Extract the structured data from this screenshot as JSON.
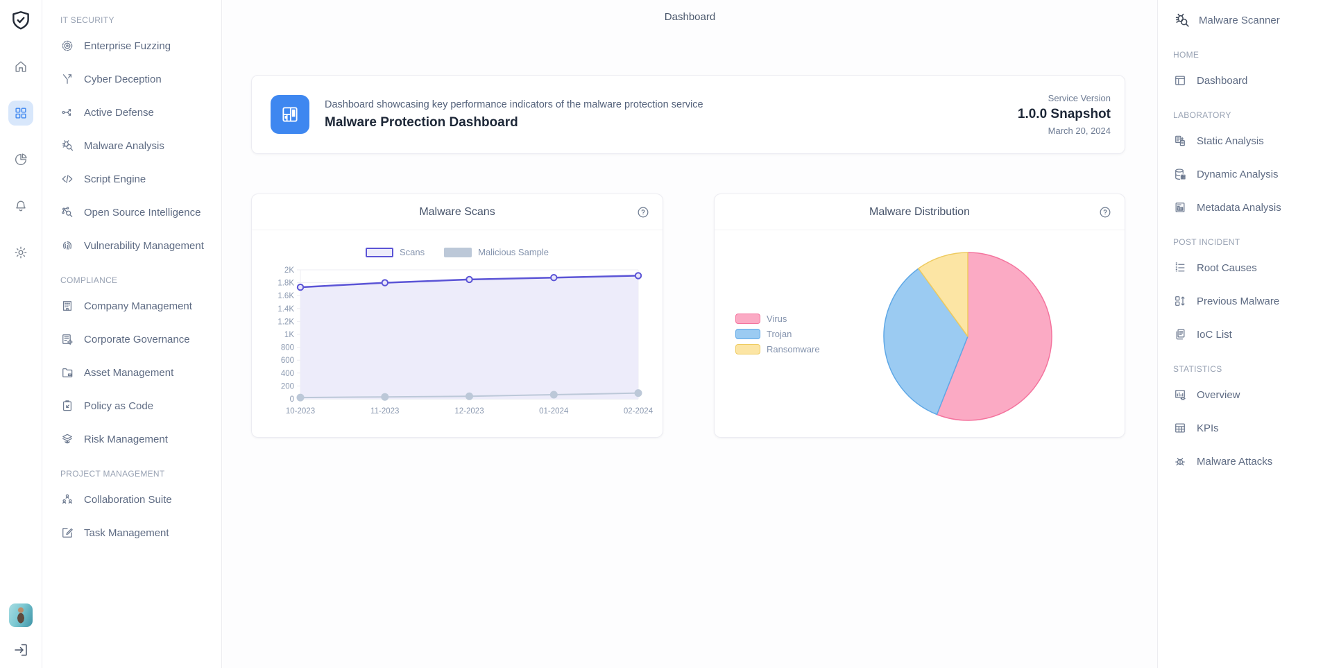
{
  "app": {
    "top_title": "Dashboard"
  },
  "rail": {
    "logo_icon": "shield-check",
    "items": [
      {
        "icon": "home",
        "active": false
      },
      {
        "icon": "apps",
        "active": true
      },
      {
        "icon": "pie",
        "active": false
      },
      {
        "icon": "bell",
        "active": false
      },
      {
        "icon": "gear",
        "active": false
      }
    ],
    "avatar": "user-photo",
    "logout_icon": "logout"
  },
  "left_sidebar": {
    "sections": [
      {
        "label": "IT SECURITY",
        "items": [
          {
            "label": "Enterprise Fuzzing",
            "icon": "target"
          },
          {
            "label": "Cyber Deception",
            "icon": "split"
          },
          {
            "label": "Active Defense",
            "icon": "route"
          },
          {
            "label": "Malware Analysis",
            "icon": "bug-search"
          },
          {
            "label": "Script Engine",
            "icon": "code"
          },
          {
            "label": "Open Source Intelligence",
            "icon": "net-search"
          },
          {
            "label": "Vulnerability Management",
            "icon": "fingerprint"
          }
        ]
      },
      {
        "label": "COMPLIANCE",
        "items": [
          {
            "label": "Company Management",
            "icon": "building"
          },
          {
            "label": "Corporate Governance",
            "icon": "list-gear"
          },
          {
            "label": "Asset Management",
            "icon": "folder"
          },
          {
            "label": "Policy as Code",
            "icon": "clipboard"
          },
          {
            "label": "Risk Management",
            "icon": "layers-eye"
          }
        ]
      },
      {
        "label": "PROJECT MANAGEMENT",
        "items": [
          {
            "label": "Collaboration Suite",
            "icon": "org"
          },
          {
            "label": "Task Management",
            "icon": "edit-square"
          }
        ]
      }
    ]
  },
  "right_sidebar": {
    "title": "Malware Scanner",
    "title_icon": "bug-search",
    "sections": [
      {
        "label": "HOME",
        "items": [
          {
            "label": "Dashboard",
            "icon": "layout"
          }
        ]
      },
      {
        "label": "LABORATORY",
        "items": [
          {
            "label": "Static Analysis",
            "icon": "doc-copy"
          },
          {
            "label": "Dynamic Analysis",
            "icon": "database"
          },
          {
            "label": "Metadata Analysis",
            "icon": "doc-table"
          }
        ]
      },
      {
        "label": "POST INCIDENT",
        "items": [
          {
            "label": "Root Causes",
            "icon": "list"
          },
          {
            "label": "Previous Malware",
            "icon": "grid-arrows"
          },
          {
            "label": "IoC List",
            "icon": "docs"
          }
        ]
      },
      {
        "label": "STATISTICS",
        "items": [
          {
            "label": "Overview",
            "icon": "chart-doc"
          },
          {
            "label": "KPIs",
            "icon": "table"
          },
          {
            "label": "Malware Attacks",
            "icon": "bug"
          }
        ]
      }
    ]
  },
  "header_card": {
    "icon": "layout-blue",
    "subtitle": "Dashboard showcasing key performance indicators of the malware protection service",
    "title": "Malware Protection Dashboard",
    "version_label": "Service Version",
    "version_value": "1.0.0 Snapshot",
    "version_date": "March 20, 2024"
  },
  "chart_data": [
    {
      "type": "line",
      "title": "Malware Scans",
      "x": [
        "10-2023",
        "11-2023",
        "12-2023",
        "01-2024",
        "02-2024"
      ],
      "series": [
        {
          "name": "Scans",
          "values": [
            1730,
            1800,
            1850,
            1880,
            1910
          ],
          "color": "#5b54d6",
          "fill": "#edecfa",
          "style": "line-area-markers"
        },
        {
          "name": "Malicious Sample",
          "values": [
            20,
            30,
            40,
            65,
            90
          ],
          "color": "#bcc8d8",
          "style": "line-dots"
        }
      ],
      "ylim": [
        0,
        2000
      ],
      "yticks": [
        0,
        200,
        400,
        600,
        800,
        1000,
        1200,
        1400,
        1600,
        1800,
        2000
      ],
      "ytick_labels": [
        "0",
        "200",
        "400",
        "600",
        "800",
        "1K",
        "1.2K",
        "1.4K",
        "1.6K",
        "1.8K",
        "2K"
      ],
      "grid": true,
      "legend_position": "top"
    },
    {
      "type": "pie",
      "title": "Malware Distribution",
      "labels": [
        "Virus",
        "Trojan",
        "Ransomware"
      ],
      "values_percent": [
        56,
        34,
        10
      ],
      "colors": [
        "#fbaac4",
        "#9bcbf2",
        "#fce5a4"
      ],
      "border_colors": [
        "#f4749e",
        "#5fa8e6",
        "#eecb60"
      ],
      "start_angle_deg": -90,
      "direction": "clockwise",
      "legend_position": "left"
    }
  ],
  "colors": {
    "accent_blue": "#3e87f0",
    "rail_active_bg": "#d8e7fb",
    "line_series": "#5b54d6",
    "line_fill": "#edecfa",
    "gray_series": "#bcc8d8",
    "pie_virus": "#fbaac4",
    "pie_trojan": "#9bcbf2",
    "pie_ransomware": "#fce5a4"
  }
}
